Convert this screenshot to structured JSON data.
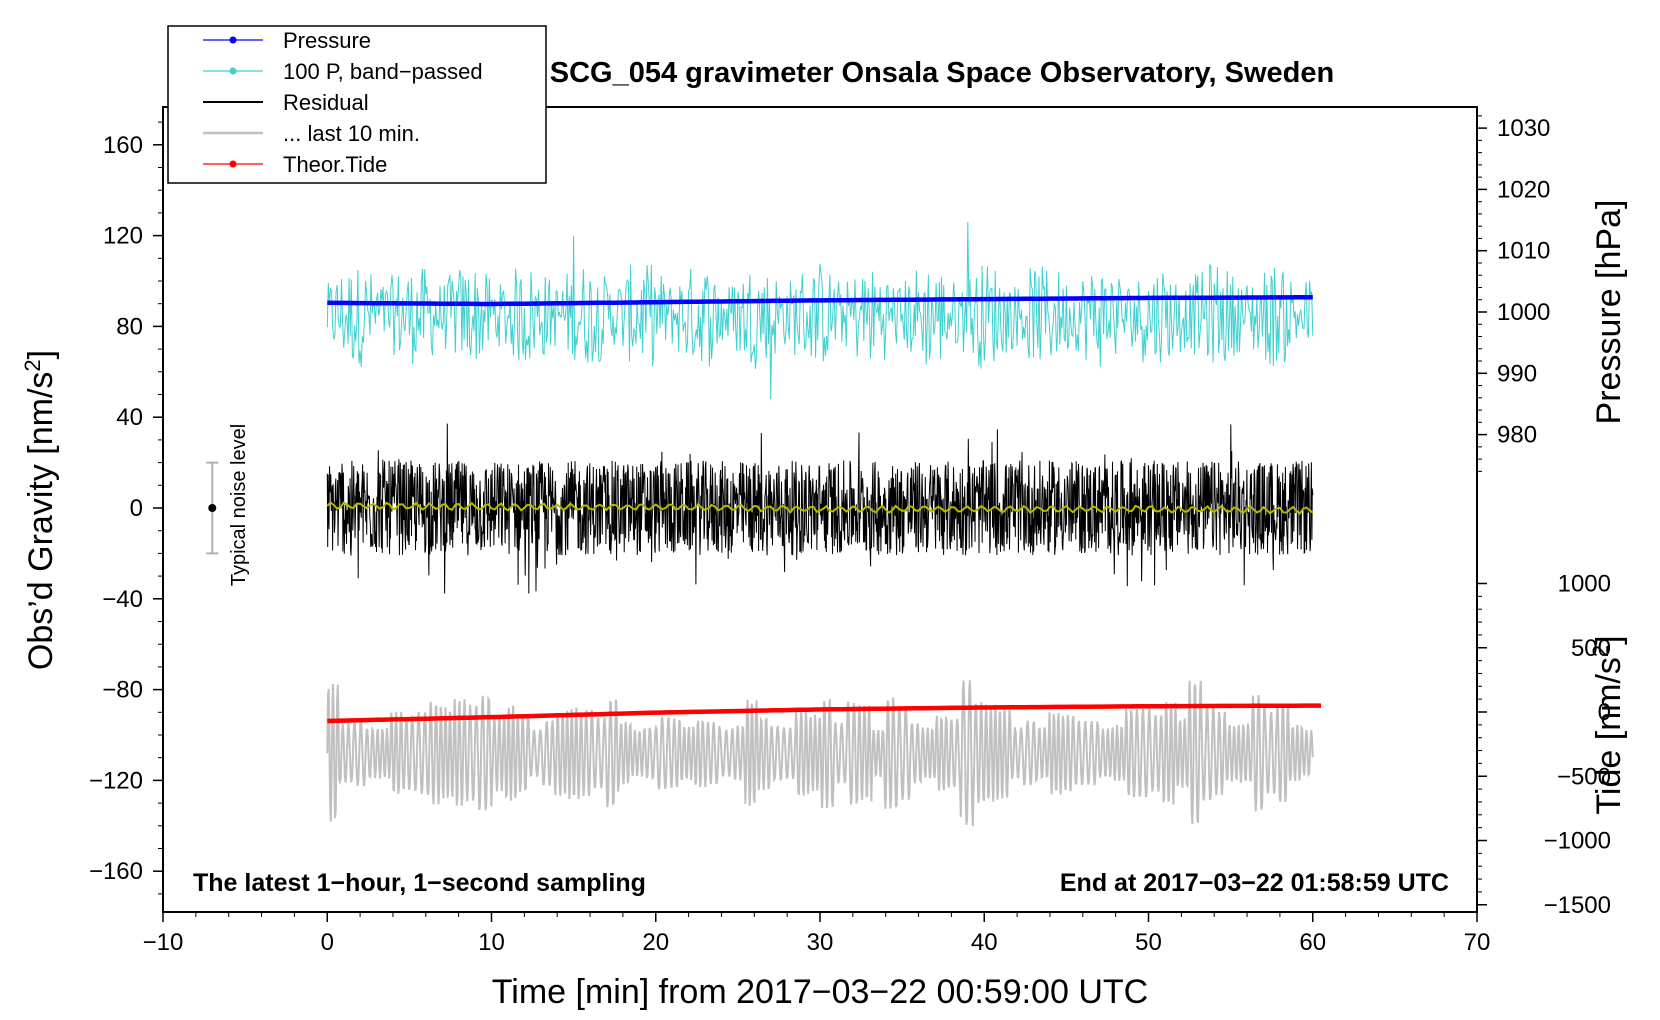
{
  "chart_data": {
    "type": "line",
    "title": "SCG_054 gravimeter Onsala Space Observatory, Sweden",
    "xlabel": "Time [min] from 2017−03−22 00:59:00 UTC",
    "ylabel_left_main": "Obs’d Gravity [nm/s",
    "ylabel_left_sup": "2",
    "ylabel_left_close": "]",
    "ylabel_right_pressure": "Pressure [hPa]",
    "ylabel_right_tide_main": "Tide [nm/s",
    "ylabel_right_tide_sup": "2",
    "ylabel_right_tide_close": "]",
    "xlim": [
      -10,
      70
    ],
    "ylim_gravity": [
      -175,
      175
    ],
    "x_ticks": [
      "−10",
      "0",
      "10",
      "20",
      "30",
      "40",
      "50",
      "60",
      "70"
    ],
    "y_ticks_gravity": [
      "160",
      "120",
      "80",
      "40",
      "0",
      "−40",
      "−80",
      "−120",
      "−160"
    ],
    "y_ticks_pressure": [
      "1030",
      "1020",
      "1010",
      "1000",
      "990",
      "980"
    ],
    "y_ticks_tide": [
      "1000",
      "500",
      "0",
      "−500",
      "−1000",
      "−1500"
    ],
    "legend": {
      "placement": "top-left",
      "items": [
        "Pressure",
        "100 P, band−passed",
        "Residual",
        "... last 10 min.",
        "Theor.Tide"
      ]
    },
    "annotations": {
      "bottom_left": "The latest 1−hour, 1−second sampling",
      "bottom_right": "End at 2017−03−22 01:58:59 UTC",
      "noise_label": "Typical noise level"
    },
    "noise_bar": {
      "x": -7,
      "center": 0,
      "low": -20,
      "high": 20
    },
    "series": [
      {
        "name": "Pressure",
        "axis": "pressure_hPa",
        "color": "#0000ff",
        "x": [
          0,
          10,
          20,
          30,
          40,
          50,
          60
        ],
        "values": [
          1001.5,
          1001.3,
          1001.6,
          1001.9,
          1002.1,
          1002.3,
          1002.4
        ]
      },
      {
        "name": "100 P, band−passed",
        "axis": "gravity",
        "color": "#40d0d0",
        "x_range": [
          0,
          60
        ],
        "baseline": 85,
        "amplitude": 25,
        "peaks": [
          [
            39,
            126
          ],
          [
            27,
            48
          ],
          [
            15,
            120
          ]
        ]
      },
      {
        "name": "Residual",
        "axis": "gravity",
        "color": "#000000",
        "x_range": [
          0,
          60
        ],
        "baseline": 0,
        "amplitude": 38
      },
      {
        "name": "Residual smoothed",
        "axis": "gravity",
        "color": "#b8b800",
        "x": [
          0,
          10,
          20,
          30,
          40,
          50,
          60
        ],
        "values": [
          1,
          0.5,
          0.5,
          -0.5,
          -0.5,
          -0.5,
          -1
        ]
      },
      {
        "name": "... last 10 min.",
        "axis": "gravity",
        "color": "#c0c0c0",
        "x_range": [
          0,
          60
        ],
        "baseline": -108,
        "amplitude": 25
      },
      {
        "name": "Theor.Tide",
        "axis": "tide_nm_s2",
        "color": "#ff0000",
        "x": [
          0,
          10,
          20,
          30,
          40,
          50,
          60.5
        ],
        "values": [
          -70,
          -40,
          -5,
          20,
          35,
          45,
          50
        ]
      }
    ],
    "colors": {
      "pressure": "#0000ff",
      "bandpassed": "#40d0d0",
      "residual": "#000000",
      "residual_smooth": "#b8b800",
      "last10": "#c0c0c0",
      "tide": "#ff0000"
    }
  }
}
